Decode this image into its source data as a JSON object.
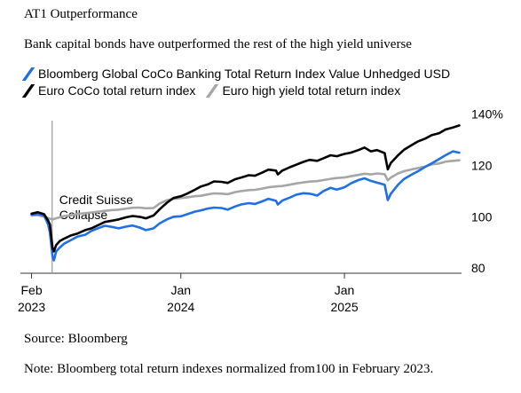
{
  "header": {
    "title": "AT1 Outperformance",
    "subtitle": "Bank capital bonds have outperformed the rest of the high yield universe"
  },
  "footer": {
    "source": "Source: Bloomberg",
    "note": "Note: Bloomberg total return indexes normalized from100 in February 2023."
  },
  "colors": {
    "blue": "#1f6fe5",
    "black": "#000000",
    "gray": "#a6a6a6",
    "annotation_line": "#9a9a9a",
    "axis": "#333333"
  },
  "chart_data": {
    "type": "line",
    "xlabel": "",
    "ylabel": "",
    "ylim": [
      78,
      143
    ],
    "xlim": [
      "2023-01-15",
      "2025-09-20"
    ],
    "y_ticks": [
      {
        "value": 80,
        "label": "80"
      },
      {
        "value": 100,
        "label": "100"
      },
      {
        "value": 120,
        "label": "120"
      },
      {
        "value": 140,
        "label": "140%"
      }
    ],
    "x_ticks": [
      {
        "date": "2023-02-01",
        "label": "Feb",
        "year": "2023"
      },
      {
        "date": "2024-01-01",
        "label": "Jan",
        "year": "2024"
      },
      {
        "date": "2025-01-01",
        "label": "Jan",
        "year": "2025"
      }
    ],
    "legend": [
      "Bloomberg Global CoCo Banking Total Return Index Value Unhedged USD",
      "Euro CoCo total return index",
      "Euro high yield total return index"
    ],
    "annotations": [
      {
        "date": "2023-03-19",
        "text": "Credit Suisse\nCollapse"
      }
    ],
    "series": [
      {
        "name": "Euro high yield total return index",
        "color": "#a6a6a6",
        "points": [
          [
            "2023-02-01",
            100.5
          ],
          [
            "2023-02-15",
            100.6
          ],
          [
            "2023-03-01",
            100.0
          ],
          [
            "2023-03-15",
            99.2
          ],
          [
            "2023-03-20",
            99.0
          ],
          [
            "2023-04-01",
            99.6
          ],
          [
            "2023-04-15",
            100.3
          ],
          [
            "2023-05-01",
            100.6
          ],
          [
            "2023-05-15",
            101.1
          ],
          [
            "2023-06-01",
            101.4
          ],
          [
            "2023-06-15",
            101.7
          ],
          [
            "2023-07-01",
            102.0
          ],
          [
            "2023-07-15",
            102.3
          ],
          [
            "2023-08-01",
            102.6
          ],
          [
            "2023-08-15",
            102.8
          ],
          [
            "2023-09-01",
            103.2
          ],
          [
            "2023-09-15",
            103.5
          ],
          [
            "2023-10-01",
            103.6
          ],
          [
            "2023-10-15",
            103.3
          ],
          [
            "2023-11-01",
            103.4
          ],
          [
            "2023-11-15",
            105.2
          ],
          [
            "2023-12-01",
            106.5
          ],
          [
            "2023-12-15",
            107.0
          ],
          [
            "2024-01-01",
            107.3
          ],
          [
            "2024-01-15",
            107.6
          ],
          [
            "2024-02-01",
            108.0
          ],
          [
            "2024-02-15",
            108.2
          ],
          [
            "2024-03-01",
            108.7
          ],
          [
            "2024-03-15",
            109.1
          ],
          [
            "2024-04-01",
            109.0
          ],
          [
            "2024-04-15",
            108.8
          ],
          [
            "2024-05-01",
            109.6
          ],
          [
            "2024-05-15",
            110.0
          ],
          [
            "2024-06-01",
            110.4
          ],
          [
            "2024-06-15",
            110.5
          ],
          [
            "2024-07-01",
            111.0
          ],
          [
            "2024-07-15",
            111.5
          ],
          [
            "2024-08-01",
            111.8
          ],
          [
            "2024-08-15",
            112.0
          ],
          [
            "2024-09-01",
            112.5
          ],
          [
            "2024-09-15",
            113.0
          ],
          [
            "2024-10-01",
            113.4
          ],
          [
            "2024-10-15",
            113.7
          ],
          [
            "2024-11-01",
            113.9
          ],
          [
            "2024-11-15",
            114.3
          ],
          [
            "2024-12-01",
            114.8
          ],
          [
            "2024-12-15",
            115.1
          ],
          [
            "2025-01-01",
            115.3
          ],
          [
            "2025-01-15",
            115.8
          ],
          [
            "2025-02-01",
            116.3
          ],
          [
            "2025-02-15",
            116.8
          ],
          [
            "2025-03-01",
            116.5
          ],
          [
            "2025-03-15",
            116.9
          ],
          [
            "2025-04-01",
            116.6
          ],
          [
            "2025-04-08",
            114.2
          ],
          [
            "2025-04-15",
            115.3
          ],
          [
            "2025-05-01",
            116.9
          ],
          [
            "2025-05-15",
            117.8
          ],
          [
            "2025-06-01",
            118.5
          ],
          [
            "2025-06-15",
            119.0
          ],
          [
            "2025-07-01",
            119.6
          ],
          [
            "2025-07-15",
            120.4
          ],
          [
            "2025-08-01",
            120.8
          ],
          [
            "2025-08-15",
            121.5
          ],
          [
            "2025-09-01",
            121.8
          ],
          [
            "2025-09-15",
            122.0
          ]
        ]
      },
      {
        "name": "Bloomberg Global CoCo Banking Total Return Index Value Unhedged USD",
        "color": "#1f6fe5",
        "points": [
          [
            "2023-02-01",
            100.8
          ],
          [
            "2023-02-15",
            101.1
          ],
          [
            "2023-03-01",
            100.5
          ],
          [
            "2023-03-10",
            97.0
          ],
          [
            "2023-03-14",
            94.0
          ],
          [
            "2023-03-20",
            84.5
          ],
          [
            "2023-03-23",
            83.0
          ],
          [
            "2023-03-28",
            86.5
          ],
          [
            "2023-04-05",
            88.0
          ],
          [
            "2023-04-15",
            89.5
          ],
          [
            "2023-05-01",
            91.0
          ],
          [
            "2023-05-15",
            92.3
          ],
          [
            "2023-06-01",
            93.0
          ],
          [
            "2023-06-15",
            94.5
          ],
          [
            "2023-07-01",
            95.6
          ],
          [
            "2023-07-15",
            96.5
          ],
          [
            "2023-08-01",
            96.0
          ],
          [
            "2023-08-15",
            95.5
          ],
          [
            "2023-09-01",
            96.2
          ],
          [
            "2023-09-15",
            96.6
          ],
          [
            "2023-10-01",
            95.8
          ],
          [
            "2023-10-15",
            94.8
          ],
          [
            "2023-11-01",
            95.5
          ],
          [
            "2023-11-15",
            97.5
          ],
          [
            "2023-12-01",
            99.0
          ],
          [
            "2023-12-15",
            100.0
          ],
          [
            "2024-01-01",
            100.2
          ],
          [
            "2024-01-15",
            101.0
          ],
          [
            "2024-02-01",
            102.0
          ],
          [
            "2024-02-15",
            102.5
          ],
          [
            "2024-03-01",
            103.2
          ],
          [
            "2024-03-15",
            103.6
          ],
          [
            "2024-04-01",
            103.4
          ],
          [
            "2024-04-15",
            102.8
          ],
          [
            "2024-05-01",
            104.0
          ],
          [
            "2024-05-15",
            104.8
          ],
          [
            "2024-06-01",
            105.3
          ],
          [
            "2024-06-15",
            105.0
          ],
          [
            "2024-07-01",
            106.0
          ],
          [
            "2024-07-15",
            107.0
          ],
          [
            "2024-08-01",
            106.2
          ],
          [
            "2024-08-05",
            104.8
          ],
          [
            "2024-08-15",
            106.3
          ],
          [
            "2024-09-01",
            107.5
          ],
          [
            "2024-09-15",
            108.6
          ],
          [
            "2024-10-01",
            109.2
          ],
          [
            "2024-10-15",
            109.0
          ],
          [
            "2024-11-01",
            108.3
          ],
          [
            "2024-11-15",
            110.0
          ],
          [
            "2024-12-01",
            111.3
          ],
          [
            "2024-12-15",
            110.6
          ],
          [
            "2025-01-01",
            111.5
          ],
          [
            "2025-01-15",
            113.0
          ],
          [
            "2025-02-01",
            114.3
          ],
          [
            "2025-02-15",
            115.0
          ],
          [
            "2025-03-01",
            114.0
          ],
          [
            "2025-03-15",
            113.3
          ],
          [
            "2025-04-01",
            112.5
          ],
          [
            "2025-04-08",
            106.5
          ],
          [
            "2025-04-15",
            109.0
          ],
          [
            "2025-05-01",
            112.5
          ],
          [
            "2025-05-15",
            114.8
          ],
          [
            "2025-06-01",
            116.5
          ],
          [
            "2025-06-15",
            117.8
          ],
          [
            "2025-07-01",
            119.5
          ],
          [
            "2025-07-15",
            120.8
          ],
          [
            "2025-08-01",
            122.5
          ],
          [
            "2025-08-15",
            124.0
          ],
          [
            "2025-09-01",
            125.5
          ],
          [
            "2025-09-15",
            125.0
          ]
        ]
      },
      {
        "name": "Euro CoCo total return index",
        "color": "#000000",
        "points": [
          [
            "2023-02-01",
            101.2
          ],
          [
            "2023-02-15",
            101.8
          ],
          [
            "2023-03-01",
            101.0
          ],
          [
            "2023-03-10",
            98.5
          ],
          [
            "2023-03-14",
            97.0
          ],
          [
            "2023-03-20",
            88.0
          ],
          [
            "2023-03-23",
            86.5
          ],
          [
            "2023-03-28",
            89.0
          ],
          [
            "2023-04-05",
            90.5
          ],
          [
            "2023-04-15",
            91.5
          ],
          [
            "2023-05-01",
            92.8
          ],
          [
            "2023-05-15",
            93.5
          ],
          [
            "2023-06-01",
            94.8
          ],
          [
            "2023-06-15",
            95.5
          ],
          [
            "2023-07-01",
            96.8
          ],
          [
            "2023-07-15",
            98.0
          ],
          [
            "2023-08-01",
            98.5
          ],
          [
            "2023-08-15",
            99.0
          ],
          [
            "2023-09-01",
            99.8
          ],
          [
            "2023-09-15",
            100.3
          ],
          [
            "2023-10-01",
            100.0
          ],
          [
            "2023-10-15",
            99.4
          ],
          [
            "2023-11-01",
            100.5
          ],
          [
            "2023-11-15",
            103.0
          ],
          [
            "2023-12-01",
            105.5
          ],
          [
            "2023-12-15",
            107.3
          ],
          [
            "2024-01-01",
            108.0
          ],
          [
            "2024-01-15",
            109.0
          ],
          [
            "2024-02-01",
            110.5
          ],
          [
            "2024-02-15",
            111.8
          ],
          [
            "2024-03-01",
            112.6
          ],
          [
            "2024-03-15",
            113.8
          ],
          [
            "2024-04-01",
            113.6
          ],
          [
            "2024-04-15",
            113.2
          ],
          [
            "2024-05-01",
            114.6
          ],
          [
            "2024-05-15",
            115.3
          ],
          [
            "2024-06-01",
            116.2
          ],
          [
            "2024-06-15",
            116.0
          ],
          [
            "2024-07-01",
            117.2
          ],
          [
            "2024-07-15",
            118.4
          ],
          [
            "2024-08-01",
            118.0
          ],
          [
            "2024-08-05",
            116.5
          ],
          [
            "2024-08-15",
            118.0
          ],
          [
            "2024-09-01",
            119.3
          ],
          [
            "2024-09-15",
            120.3
          ],
          [
            "2024-10-01",
            121.4
          ],
          [
            "2024-10-15",
            122.2
          ],
          [
            "2024-11-01",
            121.8
          ],
          [
            "2024-11-15",
            122.8
          ],
          [
            "2024-12-01",
            124.0
          ],
          [
            "2024-12-15",
            123.6
          ],
          [
            "2025-01-01",
            124.5
          ],
          [
            "2025-01-15",
            125.0
          ],
          [
            "2025-02-01",
            126.0
          ],
          [
            "2025-02-15",
            127.0
          ],
          [
            "2025-03-01",
            125.5
          ],
          [
            "2025-03-15",
            126.0
          ],
          [
            "2025-04-01",
            124.8
          ],
          [
            "2025-04-08",
            118.5
          ],
          [
            "2025-04-15",
            121.0
          ],
          [
            "2025-05-01",
            124.0
          ],
          [
            "2025-05-15",
            126.2
          ],
          [
            "2025-06-01",
            128.0
          ],
          [
            "2025-06-15",
            129.4
          ],
          [
            "2025-07-01",
            130.5
          ],
          [
            "2025-07-15",
            131.8
          ],
          [
            "2025-08-01",
            132.6
          ],
          [
            "2025-08-15",
            134.0
          ],
          [
            "2025-09-01",
            134.8
          ],
          [
            "2025-09-15",
            135.6
          ]
        ]
      }
    ]
  }
}
